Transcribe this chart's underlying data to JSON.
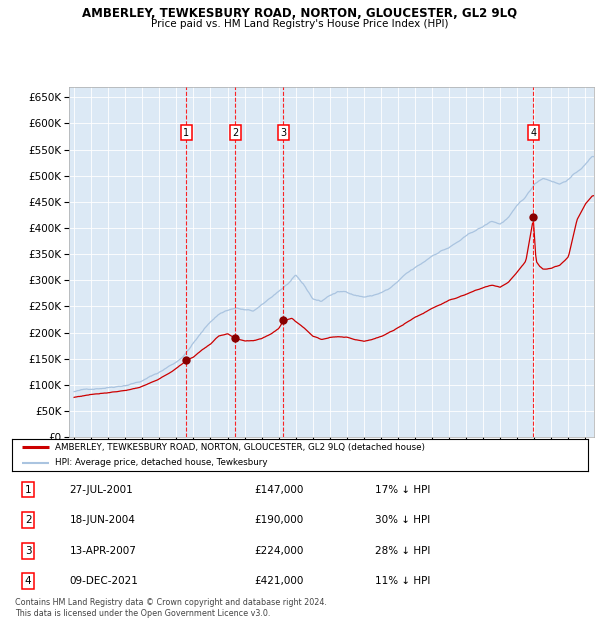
{
  "title": "AMBERLEY, TEWKESBURY ROAD, NORTON, GLOUCESTER, GL2 9LQ",
  "subtitle": "Price paid vs. HM Land Registry's House Price Index (HPI)",
  "legend_line1": "AMBERLEY, TEWKESBURY ROAD, NORTON, GLOUCESTER, GL2 9LQ (detached house)",
  "legend_line2": "HPI: Average price, detached house, Tewkesbury",
  "footer1": "Contains HM Land Registry data © Crown copyright and database right 2024.",
  "footer2": "This data is licensed under the Open Government Licence v3.0.",
  "hpi_color": "#aac4e0",
  "price_color": "#cc0000",
  "marker_color": "#880000",
  "bg_color": "#dce9f5",
  "transactions": [
    {
      "num": 1,
      "date": "27-JUL-2001",
      "price": 147000,
      "pct": "17%",
      "date_decimal": 2001.57
    },
    {
      "num": 2,
      "date": "18-JUN-2004",
      "price": 190000,
      "pct": "30%",
      "date_decimal": 2004.46
    },
    {
      "num": 3,
      "date": "13-APR-2007",
      "price": 224000,
      "pct": "28%",
      "date_decimal": 2007.28
    },
    {
      "num": 4,
      "date": "09-DEC-2021",
      "price": 421000,
      "pct": "11%",
      "date_decimal": 2021.94
    }
  ],
  "ylim": [
    0,
    670000
  ],
  "yticks": [
    0,
    50000,
    100000,
    150000,
    200000,
    250000,
    300000,
    350000,
    400000,
    450000,
    500000,
    550000,
    600000,
    650000
  ],
  "xlim_start": 1994.7,
  "xlim_end": 2025.5,
  "table_rows": [
    [
      "1",
      "27-JUL-2001",
      "£147,000",
      "17% ↓ HPI"
    ],
    [
      "2",
      "18-JUN-2004",
      "£190,000",
      "30% ↓ HPI"
    ],
    [
      "3",
      "13-APR-2007",
      "£224,000",
      "28% ↓ HPI"
    ],
    [
      "4",
      "09-DEC-2021",
      "£421,000",
      "11% ↓ HPI"
    ]
  ]
}
